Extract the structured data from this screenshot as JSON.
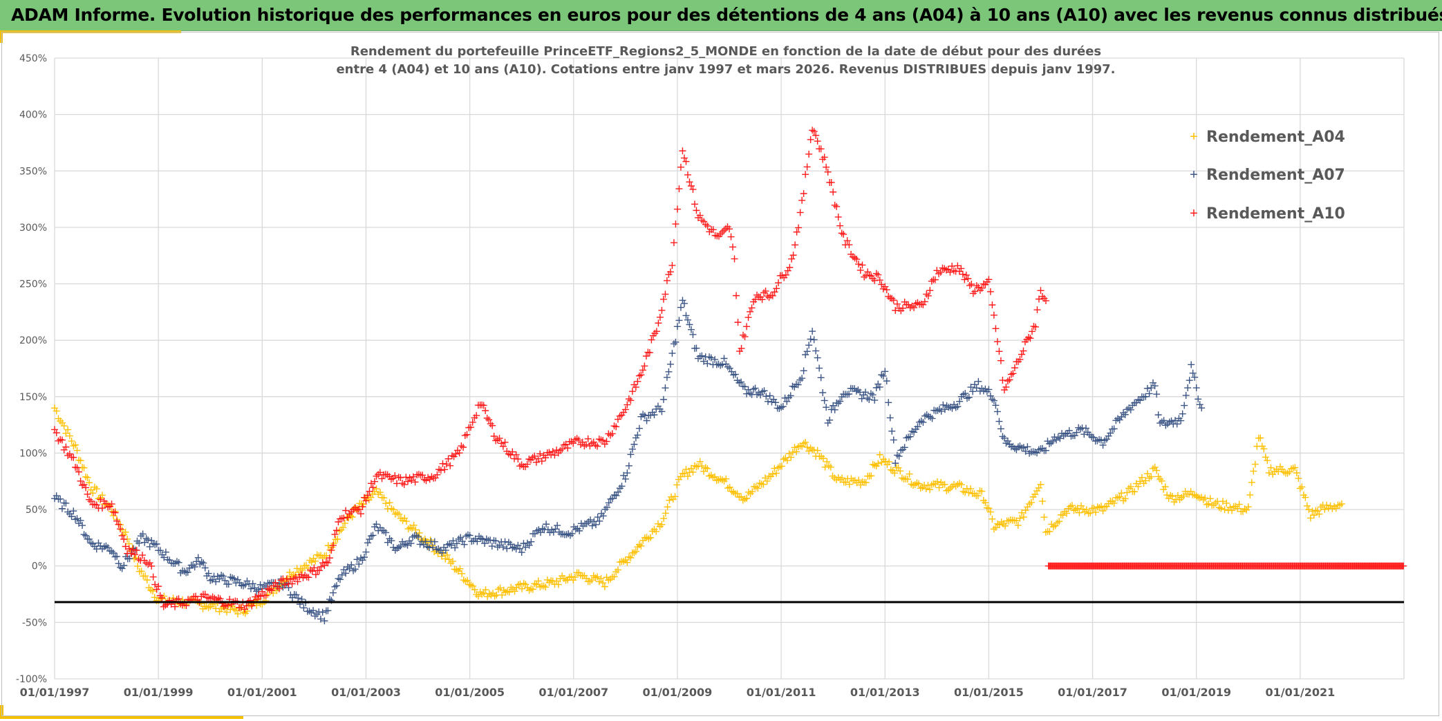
{
  "header": {
    "title": "ADAM Informe. Evolution historique des performances en euros pour des détentions de 4 ans (A04) à 10 ans (A10) avec les revenus connus distribués"
  },
  "colors": {
    "header_bg": "#7cc67a",
    "accent": "#f5c000",
    "A04": "#ffc000",
    "A07": "#3b5585",
    "A10": "#ff1a1a",
    "reference_line": "#000000"
  },
  "chart_data": {
    "type": "scatter",
    "marker": "plus",
    "title_lines": [
      "Rendement du portefeuille PrinceETF_Regions2_5_MONDE  en fonction de la date de début pour des durées",
      "entre 4 (A04) et 10 ans (A10). Cotations entre janv 1997 et mars 2026. Revenus DISTRIBUES depuis janv 1997."
    ],
    "xlabel": "",
    "ylabel": "",
    "xlim": [
      "1997-01-01",
      "2023-01-01"
    ],
    "ylim": [
      -100,
      450
    ],
    "y_unit": "%",
    "grid": true,
    "legend_position": "right",
    "x_tick_labels": [
      "01/01/1997",
      "01/01/1999",
      "01/01/2001",
      "01/01/2003",
      "01/01/2005",
      "01/01/2007",
      "01/01/2009",
      "01/01/2011",
      "01/01/2013",
      "01/01/2015",
      "01/01/2017",
      "01/01/2019",
      "01/01/2021"
    ],
    "y_tick_labels": [
      "450%",
      "400%",
      "350%",
      "300%",
      "250%",
      "200%",
      "150%",
      "100%",
      "50%",
      "0%",
      "-50%",
      "-100%"
    ],
    "y_ticks": [
      450,
      400,
      350,
      300,
      250,
      200,
      150,
      100,
      50,
      0,
      -50,
      -100
    ],
    "reference_line": -32,
    "series": [
      {
        "name": "Rendement_A04",
        "color": "#ffc000",
        "points": [
          [
            1997.0,
            140
          ],
          [
            1997.4,
            105
          ],
          [
            1997.7,
            70
          ],
          [
            1998.1,
            50
          ],
          [
            1998.4,
            25
          ],
          [
            1998.6,
            0
          ],
          [
            1999.0,
            -30
          ],
          [
            1999.5,
            -32
          ],
          [
            2000.0,
            -35
          ],
          [
            2000.6,
            -40
          ],
          [
            2001.0,
            -30
          ],
          [
            2001.6,
            -5
          ],
          [
            2002.2,
            10
          ],
          [
            2002.7,
            45
          ],
          [
            2003.2,
            65
          ],
          [
            2003.6,
            45
          ],
          [
            2004.1,
            25
          ],
          [
            2004.6,
            5
          ],
          [
            2005.2,
            -25
          ],
          [
            2005.9,
            -20
          ],
          [
            2006.6,
            -15
          ],
          [
            2007.1,
            -8
          ],
          [
            2007.6,
            -15
          ],
          [
            2008.0,
            5
          ],
          [
            2008.3,
            20
          ],
          [
            2008.7,
            40
          ],
          [
            2009.1,
            80
          ],
          [
            2009.4,
            90
          ],
          [
            2009.9,
            75
          ],
          [
            2010.3,
            60
          ],
          [
            2010.8,
            80
          ],
          [
            2011.4,
            110
          ],
          [
            2011.7,
            100
          ],
          [
            2012.1,
            75
          ],
          [
            2012.6,
            75
          ],
          [
            2012.9,
            95
          ],
          [
            2013.65,
            72
          ],
          [
            2014.4,
            70
          ],
          [
            2014.9,
            62
          ],
          [
            2015.1,
            35
          ],
          [
            2015.6,
            40
          ],
          [
            2016.0,
            75
          ],
          [
            2016.1,
            30
          ],
          [
            2016.5,
            50
          ],
          [
            2017.2,
            50
          ],
          [
            2017.7,
            65
          ],
          [
            2018.2,
            85
          ],
          [
            2018.5,
            60
          ],
          [
            2019.0,
            65
          ],
          [
            2019.3,
            55
          ],
          [
            2020.0,
            50
          ],
          [
            2020.2,
            115
          ],
          [
            2020.4,
            85
          ],
          [
            2020.9,
            85
          ],
          [
            2021.2,
            45
          ],
          [
            2021.4,
            50
          ],
          [
            2021.8,
            55
          ]
        ]
      },
      {
        "name": "Rendement_A07",
        "color": "#3b5585",
        "points": [
          [
            1997.0,
            60
          ],
          [
            1997.4,
            45
          ],
          [
            1997.7,
            20
          ],
          [
            1998.1,
            15
          ],
          [
            1998.3,
            0
          ],
          [
            1998.7,
            25
          ],
          [
            1999.0,
            15
          ],
          [
            1999.5,
            -5
          ],
          [
            1999.8,
            5
          ],
          [
            2000.0,
            -10
          ],
          [
            2000.6,
            -15
          ],
          [
            2001.0,
            -20
          ],
          [
            2001.4,
            -15
          ],
          [
            2001.8,
            -35
          ],
          [
            2002.2,
            -45
          ],
          [
            2002.5,
            -10
          ],
          [
            2002.9,
            5
          ],
          [
            2003.2,
            35
          ],
          [
            2003.6,
            15
          ],
          [
            2003.9,
            25
          ],
          [
            2004.5,
            15
          ],
          [
            2005.0,
            25
          ],
          [
            2005.5,
            20
          ],
          [
            2006.0,
            15
          ],
          [
            2006.4,
            35
          ],
          [
            2006.9,
            30
          ],
          [
            2007.5,
            40
          ],
          [
            2008.0,
            80
          ],
          [
            2008.3,
            130
          ],
          [
            2008.7,
            140
          ],
          [
            2009.0,
            210
          ],
          [
            2009.1,
            235
          ],
          [
            2009.4,
            185
          ],
          [
            2009.9,
            180
          ],
          [
            2010.3,
            155
          ],
          [
            2010.6,
            155
          ],
          [
            2011.0,
            140
          ],
          [
            2011.4,
            170
          ],
          [
            2011.6,
            210
          ],
          [
            2011.9,
            130
          ],
          [
            2012.2,
            155
          ],
          [
            2012.8,
            150
          ],
          [
            2013.0,
            175
          ],
          [
            2013.2,
            95
          ],
          [
            2013.7,
            130
          ],
          [
            2014.4,
            145
          ],
          [
            2014.8,
            160
          ],
          [
            2015.1,
            150
          ],
          [
            2015.3,
            110
          ],
          [
            2015.6,
            105
          ],
          [
            2016.0,
            100
          ],
          [
            2016.3,
            115
          ],
          [
            2016.8,
            120
          ],
          [
            2017.2,
            110
          ],
          [
            2017.7,
            140
          ],
          [
            2018.2,
            160
          ],
          [
            2018.3,
            125
          ],
          [
            2018.7,
            130
          ],
          [
            2018.9,
            175
          ],
          [
            2019.1,
            140
          ]
        ]
      },
      {
        "name": "Rendement_A10",
        "color": "#ff1a1a",
        "points": [
          [
            1997.0,
            120
          ],
          [
            1997.4,
            90
          ],
          [
            1997.7,
            55
          ],
          [
            1998.1,
            55
          ],
          [
            1998.4,
            15
          ],
          [
            1998.8,
            5
          ],
          [
            1999.1,
            -35
          ],
          [
            1999.5,
            -32
          ],
          [
            1999.9,
            -28
          ],
          [
            2000.3,
            -32
          ],
          [
            2000.7,
            -35
          ],
          [
            2001.0,
            -25
          ],
          [
            2001.4,
            -15
          ],
          [
            2002.0,
            -5
          ],
          [
            2002.3,
            5
          ],
          [
            2002.5,
            45
          ],
          [
            2002.9,
            50
          ],
          [
            2003.2,
            80
          ],
          [
            2003.7,
            75
          ],
          [
            2004.3,
            80
          ],
          [
            2004.8,
            100
          ],
          [
            2005.2,
            145
          ],
          [
            2005.5,
            115
          ],
          [
            2006.0,
            90
          ],
          [
            2006.6,
            100
          ],
          [
            2007.1,
            110
          ],
          [
            2007.6,
            110
          ],
          [
            2008.0,
            140
          ],
          [
            2008.3,
            170
          ],
          [
            2008.6,
            210
          ],
          [
            2008.9,
            270
          ],
          [
            2009.1,
            370
          ],
          [
            2009.4,
            310
          ],
          [
            2009.8,
            290
          ],
          [
            2010.0,
            300
          ],
          [
            2010.1,
            270
          ],
          [
            2010.2,
            190
          ],
          [
            2010.5,
            240
          ],
          [
            2010.8,
            240
          ],
          [
            2011.2,
            270
          ],
          [
            2011.4,
            320
          ],
          [
            2011.6,
            390
          ],
          [
            2011.9,
            350
          ],
          [
            2012.2,
            290
          ],
          [
            2012.6,
            260
          ],
          [
            2012.9,
            255
          ],
          [
            2013.2,
            230
          ],
          [
            2013.7,
            230
          ],
          [
            2014.0,
            260
          ],
          [
            2014.4,
            265
          ],
          [
            2014.7,
            245
          ],
          [
            2015.0,
            250
          ],
          [
            2015.2,
            190
          ],
          [
            2015.3,
            155
          ],
          [
            2015.6,
            185
          ],
          [
            2015.9,
            215
          ],
          [
            2016.0,
            245
          ],
          [
            2016.1,
            235
          ]
        ],
        "zero_segment": [
          [
            2016.15,
            0
          ],
          [
            2023.0,
            0
          ]
        ]
      }
    ]
  }
}
